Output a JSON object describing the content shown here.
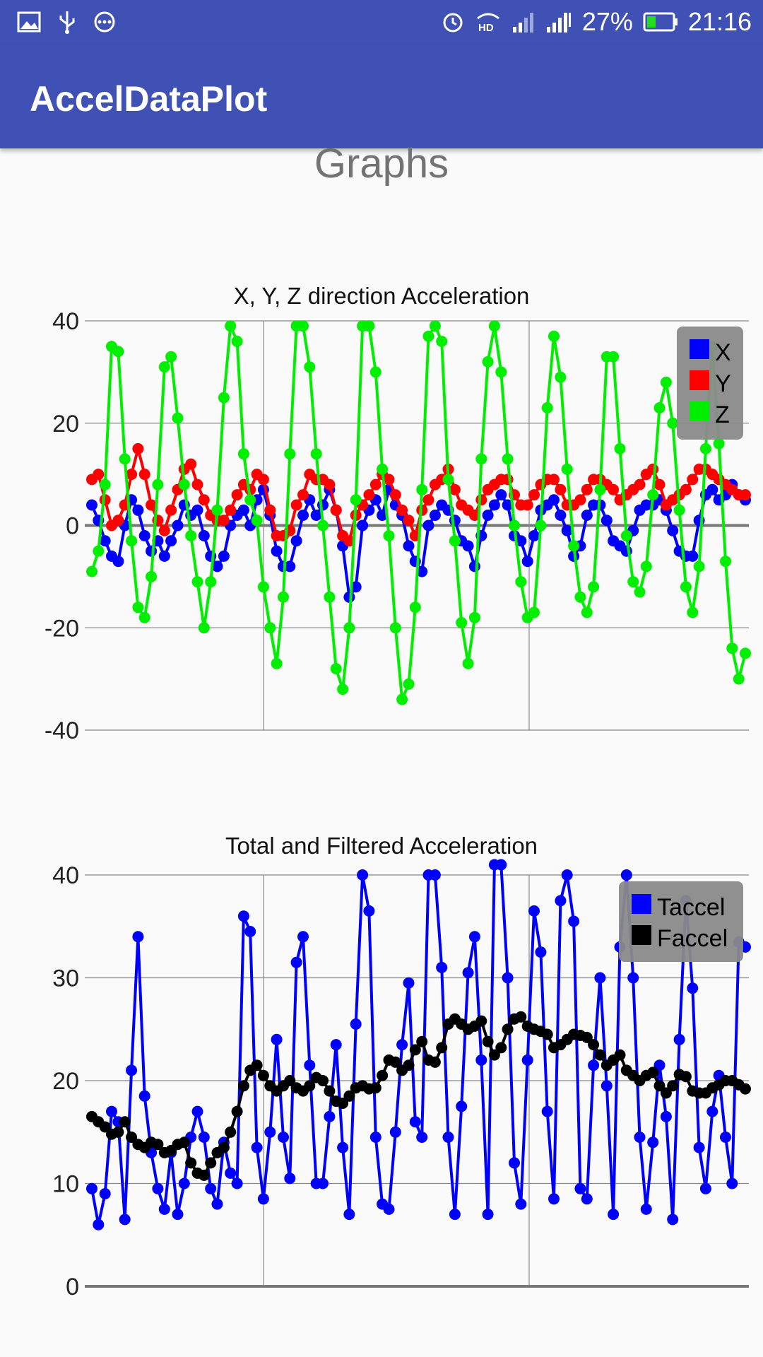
{
  "status_bar": {
    "icons_left": [
      "image-icon",
      "usb-icon",
      "more-icon"
    ],
    "icons_right": [
      "alarm-icon",
      "hd-icon",
      "signal-icon",
      "signal-icon-2",
      "battery-icon"
    ],
    "battery": "27%",
    "time": "21:16"
  },
  "app_bar": {
    "title": "AccelDataPlot"
  },
  "page": {
    "title": "Graphs"
  },
  "chart_data": [
    {
      "type": "line",
      "title": "X, Y, Z direction Acceleration",
      "xlabel": "",
      "ylabel": "",
      "ylim": [
        -40,
        40
      ],
      "yticks": [
        40,
        20,
        0,
        -20,
        -40
      ],
      "xlim": [
        0,
        99
      ],
      "grid": true,
      "legend": "top-right",
      "series": [
        {
          "name": "X",
          "color": "#0000ff",
          "values": [
            4,
            1,
            -3,
            -6,
            -7,
            0,
            5,
            3,
            -2,
            -5,
            -3,
            -6,
            -3,
            0,
            4,
            2,
            3,
            -2,
            -6,
            -8,
            -6,
            0,
            2,
            3,
            0,
            5,
            7,
            2,
            -5,
            -8,
            -8,
            -3,
            2,
            5,
            2,
            4,
            7,
            3,
            -4,
            -14,
            -12,
            0,
            3,
            5,
            2,
            7,
            4,
            2,
            -4,
            -7,
            -9,
            0,
            2,
            4,
            3,
            1,
            -3,
            -4,
            -8,
            -2,
            2,
            4,
            6,
            4,
            -2,
            -3,
            -7,
            -2,
            3,
            4,
            5,
            2,
            -1,
            -6,
            -4,
            2,
            4,
            4,
            1,
            -3,
            -4,
            -5,
            -1,
            3,
            4,
            4,
            5,
            3,
            -1,
            -5,
            -6,
            -6,
            1,
            6,
            7,
            5,
            6,
            8,
            6,
            5
          ],
          "marker": "circle"
        },
        {
          "name": "Y",
          "color": "#ff0000",
          "values": [
            9,
            10,
            5,
            0,
            1,
            4,
            10,
            15,
            10,
            4,
            1,
            -1,
            3,
            7,
            11,
            12,
            8,
            5,
            2,
            1,
            1,
            3,
            6,
            8,
            7,
            10,
            9,
            3,
            -2,
            -2,
            -1,
            4,
            6,
            10,
            9,
            9,
            8,
            3,
            -2,
            -3,
            2,
            4,
            6,
            8,
            10,
            9,
            6,
            3,
            1,
            -2,
            3,
            5,
            8,
            9,
            11,
            7,
            4,
            3,
            2,
            5,
            7,
            8,
            9,
            9,
            6,
            4,
            4,
            6,
            8,
            9,
            9,
            7,
            4,
            4,
            5,
            7,
            9,
            9,
            8,
            7,
            5,
            6,
            7,
            8,
            10,
            11,
            8,
            4,
            5,
            6,
            7,
            9,
            11,
            11,
            10,
            9,
            8,
            7,
            6,
            6
          ],
          "marker": "circle"
        },
        {
          "name": "Z",
          "color": "#00ee00",
          "values": [
            -9,
            -5,
            8,
            35,
            34,
            13,
            -3,
            -16,
            -18,
            -10,
            8,
            31,
            33,
            21,
            8,
            -2,
            -11,
            -20,
            -11,
            3,
            25,
            39,
            36,
            14,
            5,
            1,
            -12,
            -20,
            -27,
            -14,
            14,
            39,
            39,
            31,
            14,
            0,
            -14,
            -28,
            -32,
            -20,
            5,
            39,
            39,
            30,
            11,
            -2,
            -20,
            -34,
            -31,
            -16,
            7,
            37,
            39,
            36,
            9,
            -3,
            -19,
            -27,
            -18,
            13,
            32,
            39,
            30,
            13,
            0,
            -11,
            -18,
            -17,
            0,
            23,
            37,
            29,
            11,
            -4,
            -14,
            -17,
            -12,
            7,
            33,
            33,
            15,
            -2,
            -11,
            -13,
            -8,
            6,
            23,
            28,
            20,
            3,
            -12,
            -17,
            -8,
            15,
            35,
            16,
            -7,
            -24,
            -30,
            -25
          ],
          "marker": "circle"
        }
      ]
    },
    {
      "type": "line",
      "title": "Total and Filtered Acceleration",
      "xlabel": "",
      "ylabel": "",
      "ylim": [
        0,
        40
      ],
      "yticks": [
        40,
        30,
        20,
        10,
        0
      ],
      "xlim": [
        0,
        99
      ],
      "grid": true,
      "legend": "top-right",
      "series": [
        {
          "name": "Taccel",
          "color": "#0000ff",
          "values": [
            9.5,
            6,
            9,
            17,
            16,
            6.5,
            21,
            34,
            18.5,
            13,
            9.5,
            7.5,
            13,
            7,
            10,
            14.5,
            17,
            14.5,
            9.5,
            8,
            14,
            11,
            10,
            36,
            34.5,
            13.5,
            8.5,
            15,
            24,
            14.5,
            10.5,
            31.5,
            34,
            21.5,
            10,
            10,
            16.5,
            23.5,
            13.5,
            7,
            25.5,
            40,
            36.5,
            14.5,
            8,
            7.5,
            15,
            23.5,
            29.5,
            16,
            14.5,
            40,
            40,
            31,
            14.5,
            7,
            17.5,
            30.5,
            34,
            22,
            7,
            41,
            41,
            30,
            12,
            8,
            22,
            36.5,
            32.5,
            17,
            8.5,
            37.5,
            40,
            35.5,
            9.5,
            8.5,
            21.5,
            30,
            19.5,
            7,
            33,
            40,
            30,
            14.5,
            7.5,
            14,
            21.5,
            16.5,
            6.5,
            24,
            37.5,
            29,
            13.5,
            9.5,
            17,
            20.5,
            14.5,
            10,
            33.5,
            33
          ],
          "marker": "circle"
        },
        {
          "name": "Faccel",
          "color": "#000000",
          "values": [
            16.5,
            16,
            15.5,
            14.8,
            15,
            16,
            14.5,
            13.8,
            13.5,
            14,
            13.8,
            13,
            13.2,
            13.8,
            14,
            12,
            11,
            10.8,
            12,
            13,
            13.5,
            15,
            17,
            19.5,
            21,
            21.5,
            20.5,
            19.5,
            19,
            19.5,
            20,
            19.3,
            19,
            19.5,
            20.3,
            20,
            19,
            18,
            17.8,
            18.5,
            19.3,
            19.5,
            19.2,
            19.3,
            20.5,
            22,
            21.8,
            21,
            21.5,
            23,
            23.8,
            22,
            21.8,
            23.2,
            25.5,
            26,
            25.5,
            25,
            25.3,
            25.8,
            23.8,
            22.5,
            23.2,
            25,
            26,
            26.2,
            25.3,
            25,
            24.8,
            24.5,
            23.2,
            23.5,
            24,
            24.5,
            24.4,
            24.2,
            23.5,
            22.5,
            21.5,
            22,
            22.5,
            21,
            20.5,
            20,
            20.5,
            20.8,
            19.5,
            18.8,
            19.5,
            20.6,
            20.4,
            19,
            18.8,
            18.8,
            19.3,
            19.6,
            20,
            20,
            19.6,
            19.2
          ],
          "marker": "circle"
        }
      ]
    }
  ]
}
